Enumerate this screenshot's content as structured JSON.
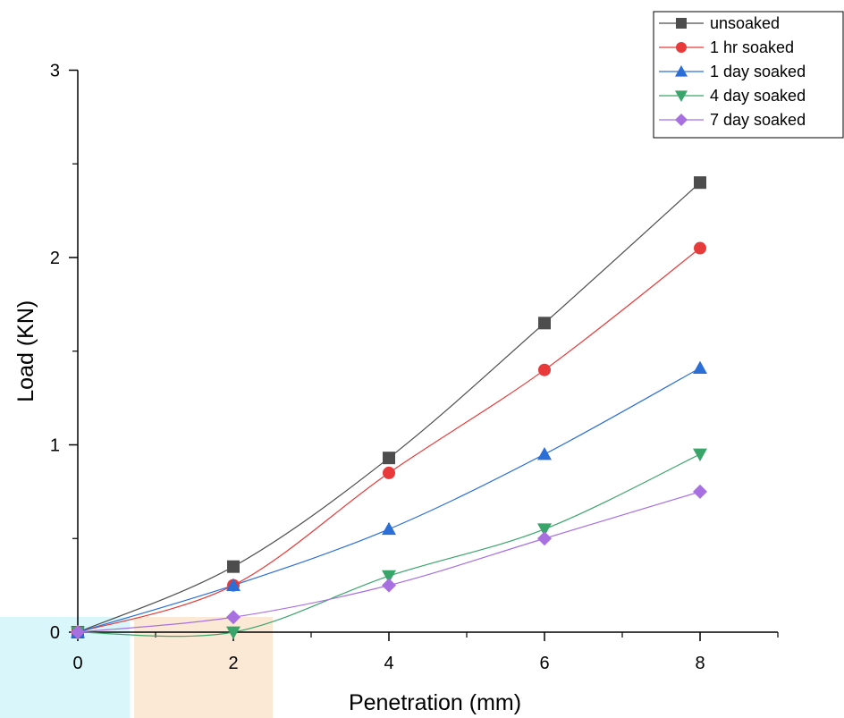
{
  "chart_data": {
    "type": "line",
    "title": "",
    "xlabel": "Penetration (mm)",
    "ylabel": "Load (KN)",
    "xlim": [
      0,
      9
    ],
    "ylim": [
      0,
      3
    ],
    "x_ticks": [
      0,
      2,
      4,
      6,
      8
    ],
    "x_tick_labels": [
      "0",
      "2",
      "4",
      "6",
      "8"
    ],
    "y_ticks": [
      0,
      1,
      2,
      3
    ],
    "y_tick_labels": [
      "0",
      "1",
      "2",
      "3"
    ],
    "x": [
      0,
      2,
      4,
      6,
      8
    ],
    "grid": false,
    "legend_position": "top-right",
    "series": [
      {
        "name": "unsoaked",
        "values": [
          0,
          0.35,
          0.93,
          1.65,
          2.4
        ],
        "color": "#4d4d4d",
        "marker": "square"
      },
      {
        "name": "1 hr soaked",
        "values": [
          0,
          0.25,
          0.85,
          1.4,
          2.05
        ],
        "color": "#e83a3a",
        "marker": "circle"
      },
      {
        "name": "1 day soaked",
        "values": [
          0,
          0.25,
          0.55,
          0.95,
          1.41
        ],
        "color": "#2b6fd6",
        "marker": "triangle-up"
      },
      {
        "name": "4 day soaked",
        "values": [
          0,
          0.0,
          0.3,
          0.55,
          0.95
        ],
        "color": "#3aa56b",
        "marker": "triangle-down"
      },
      {
        "name": "7 day  soaked",
        "values": [
          0,
          0.08,
          0.25,
          0.5,
          0.75
        ],
        "color": "#a86fe0",
        "marker": "diamond"
      }
    ]
  }
}
